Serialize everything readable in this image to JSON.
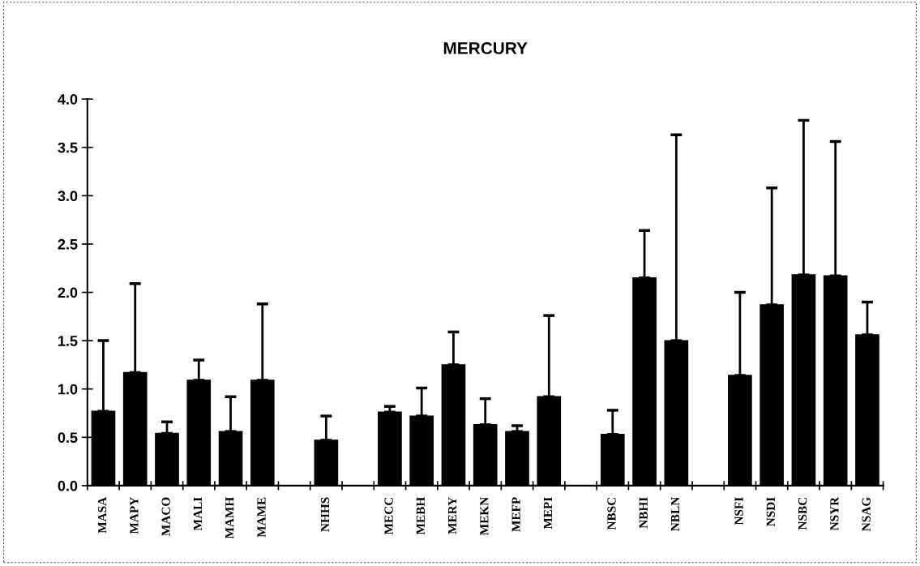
{
  "chart_data": {
    "type": "bar",
    "title": "MERCURY",
    "categories": [
      "MASA",
      "MAPY",
      "MACO",
      "MALI",
      "MAMH",
      "MAME",
      null,
      "NHHS",
      null,
      "MECC",
      "MEBH",
      "MERY",
      "MEKN",
      "MEFP",
      "MEPI",
      null,
      "NBSC",
      "NBHI",
      "NBLN",
      null,
      "NSFI",
      "NSDI",
      "NSBC",
      "NSYR",
      "NSAG"
    ],
    "values": [
      0.77,
      1.17,
      0.54,
      1.09,
      0.56,
      1.09,
      null,
      0.47,
      null,
      0.76,
      0.72,
      1.25,
      0.63,
      0.56,
      0.92,
      null,
      0.53,
      2.15,
      1.5,
      null,
      1.14,
      1.87,
      2.18,
      2.17,
      1.56
    ],
    "errors": [
      [
        0.77,
        1.5
      ],
      [
        1.17,
        2.09
      ],
      [
        0.54,
        0.66
      ],
      [
        1.09,
        1.3
      ],
      [
        0.56,
        0.92
      ],
      [
        1.09,
        1.88
      ],
      null,
      [
        0.47,
        0.72
      ],
      null,
      [
        0.76,
        0.82
      ],
      [
        0.72,
        1.01
      ],
      [
        1.25,
        1.59
      ],
      [
        0.63,
        0.9
      ],
      [
        0.56,
        0.62
      ],
      [
        0.92,
        1.76
      ],
      null,
      [
        0.53,
        0.78
      ],
      [
        2.15,
        2.64
      ],
      [
        1.5,
        3.63
      ],
      null,
      [
        1.14,
        2.0
      ],
      [
        1.87,
        3.08
      ],
      [
        2.18,
        3.78
      ],
      [
        2.17,
        3.56
      ],
      [
        1.56,
        1.9
      ]
    ],
    "color": "#000000",
    "ylim": [
      0,
      4
    ],
    "yticks": [
      {
        "value": 0,
        "label": "0.0"
      },
      {
        "value": 0.5,
        "label": "0.5"
      },
      {
        "value": 1,
        "label": "1.0"
      },
      {
        "value": 1.5,
        "label": "1.5"
      },
      {
        "value": 2,
        "label": "2.0"
      },
      {
        "value": 2.5,
        "label": "2.5"
      },
      {
        "value": 3,
        "label": "3.0"
      },
      {
        "value": 3.5,
        "label": "3.5"
      },
      {
        "value": 4,
        "label": "4.0"
      }
    ],
    "grid": false,
    "legend": false
  }
}
